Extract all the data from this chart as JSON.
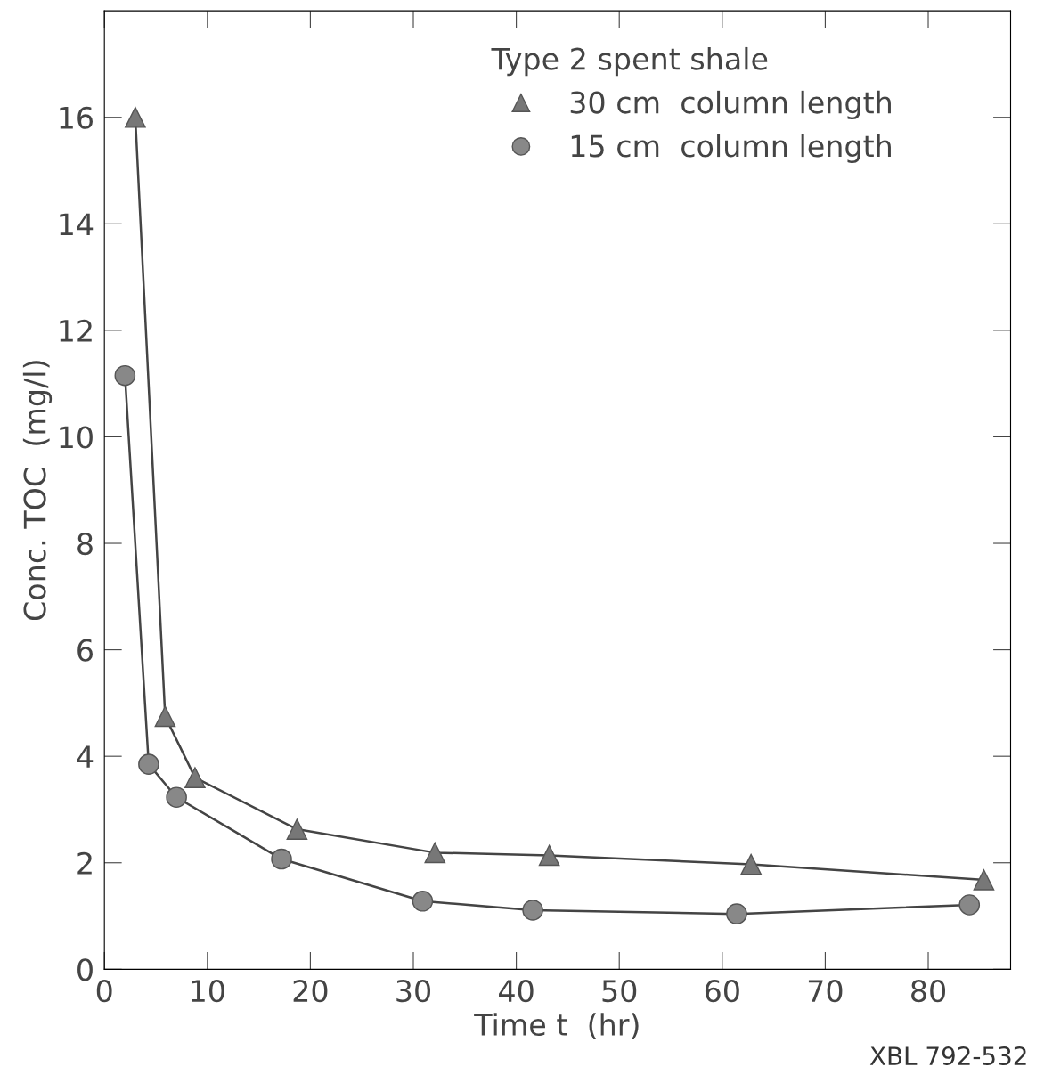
{
  "chart_data": {
    "type": "line",
    "xlabel": "Time t  (hr)",
    "ylabel": "Conc. TOC  (mg/l)",
    "legend_title": "Type 2 spent shale",
    "legend": "top right",
    "line_style": "solid",
    "grid": false,
    "xlim": [
      0,
      88
    ],
    "xticks": [
      0,
      10,
      20,
      30,
      40,
      50,
      60,
      70,
      80
    ],
    "ylim": [
      0,
      18
    ],
    "yticks": [
      0,
      2,
      4,
      6,
      8,
      10,
      12,
      14,
      16
    ],
    "series": [
      {
        "name": "30 cm  column length",
        "color": "#777777",
        "marker": "triangle",
        "x": [
          3.0,
          5.9,
          8.8,
          18.7,
          32.1,
          43.2,
          62.8,
          85.4
        ],
        "values": [
          16.0,
          4.75,
          3.6,
          2.63,
          2.19,
          2.14,
          1.97,
          1.68
        ]
      },
      {
        "name": "15 cm  column length",
        "color": "#888888",
        "marker": "circle",
        "x": [
          2.0,
          4.3,
          7.0,
          17.2,
          30.9,
          41.6,
          61.4,
          84.0
        ],
        "values": [
          11.15,
          3.85,
          3.23,
          2.07,
          1.28,
          1.11,
          1.04,
          1.21
        ]
      }
    ],
    "annotations": [
      "XBL 792-532"
    ]
  }
}
